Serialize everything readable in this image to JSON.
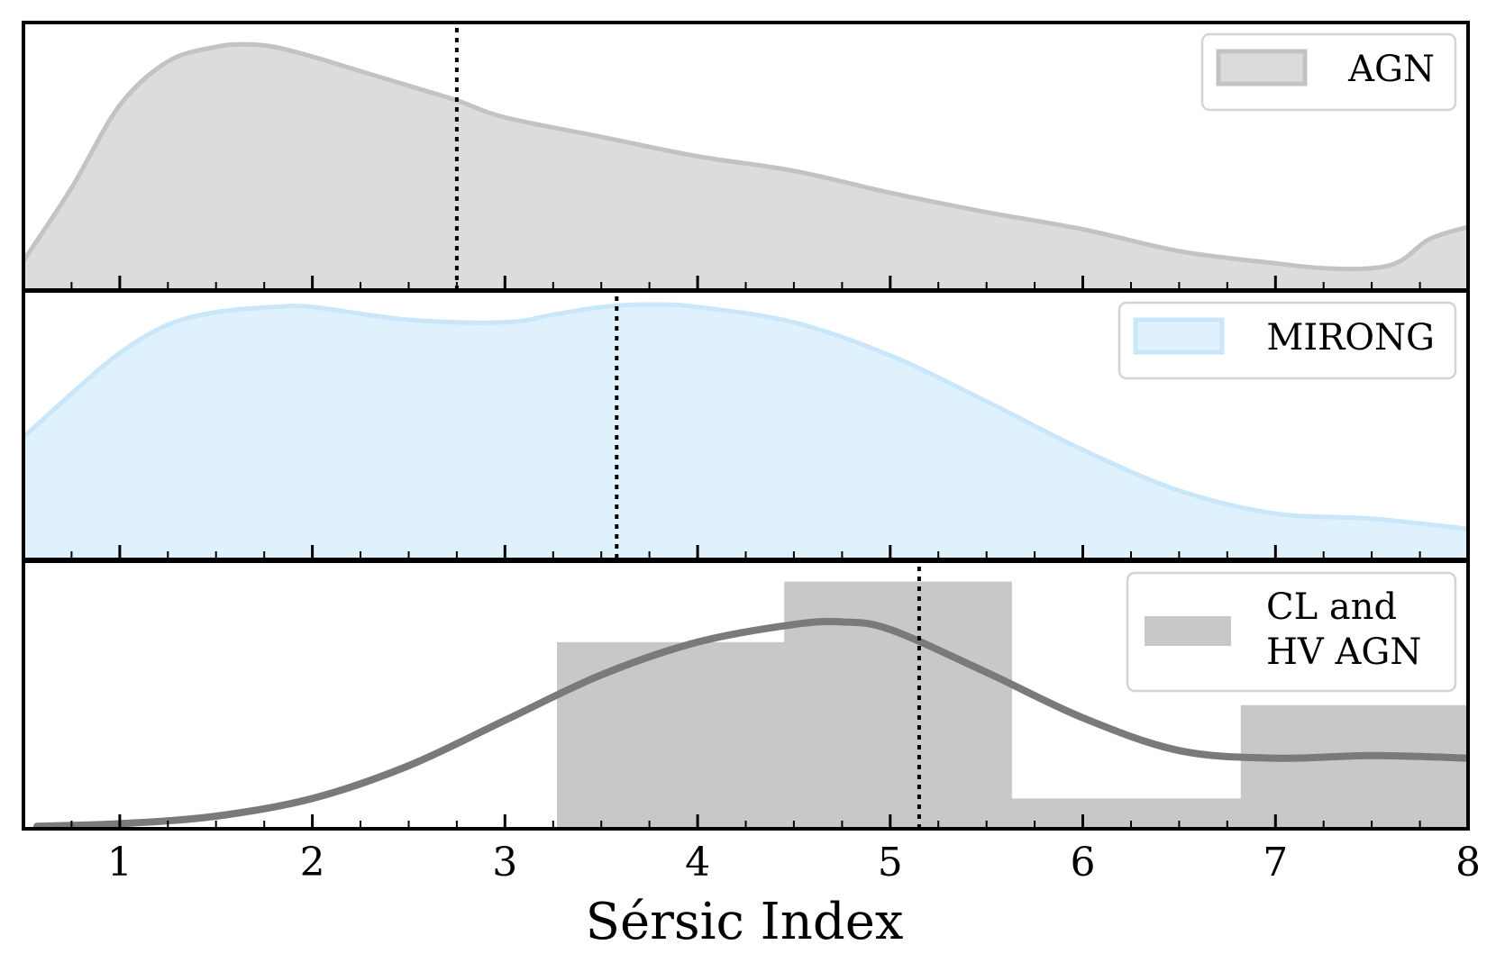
{
  "chart_data": {
    "type": "area",
    "xlabel": "Sérsic Index",
    "xlim": [
      0.5,
      8
    ],
    "xticks": [
      "1",
      "2",
      "3",
      "4",
      "5",
      "6",
      "7",
      "8"
    ],
    "panels": [
      {
        "id": "agn",
        "type": "area",
        "legend": "AGN",
        "legend_position": "top-right",
        "fill_color": "#dcdcdc",
        "line_color": "#c3c3c3",
        "median": 2.75,
        "ylim": [
          0,
          1
        ],
        "x": [
          0.5,
          0.75,
          1.0,
          1.25,
          1.5,
          1.65,
          1.8,
          2.0,
          2.25,
          2.5,
          2.75,
          3.0,
          3.5,
          4.0,
          4.5,
          5.0,
          5.5,
          6.0,
          6.5,
          7.0,
          7.25,
          7.5,
          7.65,
          7.8,
          8.0
        ],
        "y": [
          0.12,
          0.42,
          0.76,
          0.94,
          1.0,
          1.01,
          1.0,
          0.96,
          0.9,
          0.84,
          0.78,
          0.71,
          0.63,
          0.55,
          0.49,
          0.4,
          0.32,
          0.25,
          0.16,
          0.11,
          0.09,
          0.09,
          0.12,
          0.21,
          0.26
        ]
      },
      {
        "id": "mirong",
        "type": "area",
        "legend": "MIRONG",
        "legend_position": "top-right",
        "fill_color": "#def1fc",
        "line_color": "#c9e6fa",
        "median": 3.58,
        "ylim": [
          0,
          1
        ],
        "x": [
          0.5,
          0.75,
          1.0,
          1.25,
          1.5,
          1.8,
          2.0,
          2.5,
          3.0,
          3.25,
          3.5,
          3.75,
          4.0,
          4.5,
          5.0,
          5.5,
          6.0,
          6.5,
          7.0,
          7.5,
          8.0
        ],
        "y": [
          0.48,
          0.65,
          0.81,
          0.92,
          0.97,
          0.99,
          0.99,
          0.94,
          0.93,
          0.96,
          0.99,
          1.0,
          0.99,
          0.93,
          0.8,
          0.62,
          0.43,
          0.27,
          0.18,
          0.16,
          0.12
        ]
      },
      {
        "id": "cl-hv-agn",
        "type": "bar",
        "legend": [
          "CL and",
          "HV AGN"
        ],
        "legend_position": "top-right",
        "bar_color": "#c8c8c8",
        "line_color": "#7a7a7a",
        "median": 5.15,
        "ylim": [
          0,
          1
        ],
        "bins": [
          {
            "left": 3.27,
            "right": 4.45,
            "value": 0.74
          },
          {
            "left": 4.45,
            "right": 5.63,
            "value": 0.98
          },
          {
            "left": 5.63,
            "right": 6.82,
            "value": 0.12
          },
          {
            "left": 6.82,
            "right": 8.0,
            "value": 0.49
          }
        ],
        "x": [
          0.57,
          1.0,
          1.5,
          2.0,
          2.5,
          3.0,
          3.5,
          4.0,
          4.5,
          4.75,
          5.0,
          5.5,
          6.0,
          6.5,
          7.0,
          7.5,
          8.0
        ],
        "y": [
          0.01,
          0.02,
          0.05,
          0.12,
          0.25,
          0.43,
          0.61,
          0.74,
          0.81,
          0.82,
          0.79,
          0.62,
          0.44,
          0.31,
          0.28,
          0.29,
          0.28
        ]
      }
    ]
  }
}
